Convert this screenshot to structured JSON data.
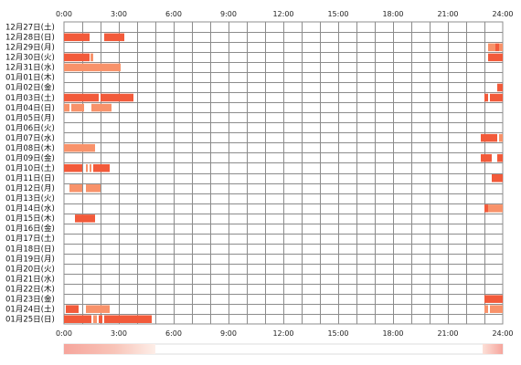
{
  "chart_data": {
    "type": "heatmap",
    "title": "",
    "xlabel": "",
    "ylabel": "",
    "x_ticks": [
      "0:00",
      "3:00",
      "6:00",
      "9:00",
      "12:00",
      "15:00",
      "18:00",
      "21:00",
      "24:00"
    ],
    "x_range_hours": [
      0,
      24
    ],
    "grid": true,
    "colors": {
      "strong": "#f25a3a",
      "light": "#f8926a",
      "grid": "#8c8c8c",
      "bar_strong": "#f58078",
      "bar_light": "#fde6dd"
    },
    "rows": [
      {
        "label": "12月27日(土)",
        "segments": []
      },
      {
        "label": "12月28日(日)",
        "segments": [
          [
            0.0,
            1.4,
            "strong"
          ],
          [
            2.2,
            3.3,
            "strong"
          ]
        ]
      },
      {
        "label": "12月29日(月)",
        "segments": [
          [
            23.2,
            23.6,
            "light"
          ],
          [
            23.6,
            23.8,
            "strong"
          ],
          [
            23.8,
            24.0,
            "light"
          ]
        ]
      },
      {
        "label": "12月30日(火)",
        "segments": [
          [
            0.0,
            1.4,
            "strong"
          ],
          [
            1.45,
            1.6,
            "light"
          ],
          [
            23.2,
            24.0,
            "strong"
          ]
        ]
      },
      {
        "label": "12月31日(水)",
        "segments": [
          [
            0.0,
            3.1,
            "light"
          ]
        ]
      },
      {
        "label": "01月01日(木)",
        "segments": []
      },
      {
        "label": "01月02日(金)",
        "segments": [
          [
            23.7,
            24.0,
            "strong"
          ]
        ]
      },
      {
        "label": "01月03日(土)",
        "segments": [
          [
            0.0,
            1.9,
            "strong"
          ],
          [
            2.0,
            3.8,
            "strong"
          ],
          [
            23.0,
            23.2,
            "strong"
          ],
          [
            23.3,
            24.0,
            "strong"
          ]
        ]
      },
      {
        "label": "01月04日(日)",
        "segments": [
          [
            0.0,
            0.3,
            "light"
          ],
          [
            0.4,
            1.1,
            "light"
          ],
          [
            1.5,
            2.6,
            "light"
          ]
        ]
      },
      {
        "label": "01月05日(月)",
        "segments": []
      },
      {
        "label": "01月06日(火)",
        "segments": []
      },
      {
        "label": "01月07日(水)",
        "segments": [
          [
            22.8,
            23.7,
            "strong"
          ],
          [
            23.8,
            24.0,
            "light"
          ]
        ]
      },
      {
        "label": "01月08日(木)",
        "segments": [
          [
            0.0,
            1.7,
            "light"
          ]
        ]
      },
      {
        "label": "01月09日(金)",
        "segments": [
          [
            22.8,
            23.4,
            "strong"
          ],
          [
            23.7,
            24.0,
            "strong"
          ]
        ]
      },
      {
        "label": "01月10日(土)",
        "segments": [
          [
            0.0,
            1.0,
            "strong"
          ],
          [
            1.2,
            1.3,
            "light"
          ],
          [
            1.4,
            1.5,
            "light"
          ],
          [
            1.6,
            2.5,
            "strong"
          ]
        ]
      },
      {
        "label": "01月11日(日)",
        "segments": [
          [
            23.4,
            24.0,
            "strong"
          ]
        ]
      },
      {
        "label": "01月12日(月)",
        "segments": [
          [
            0.3,
            1.0,
            "light"
          ],
          [
            1.2,
            2.0,
            "light"
          ]
        ]
      },
      {
        "label": "01月13日(火)",
        "segments": []
      },
      {
        "label": "01月14日(水)",
        "segments": [
          [
            23.0,
            23.2,
            "strong"
          ],
          [
            23.2,
            24.0,
            "light"
          ]
        ]
      },
      {
        "label": "01月15日(木)",
        "segments": [
          [
            0.6,
            1.7,
            "strong"
          ]
        ]
      },
      {
        "label": "01月16日(金)",
        "segments": []
      },
      {
        "label": "01月17日(土)",
        "segments": []
      },
      {
        "label": "01月18日(日)",
        "segments": []
      },
      {
        "label": "01月19日(月)",
        "segments": []
      },
      {
        "label": "01月20日(火)",
        "segments": []
      },
      {
        "label": "01月21日(水)",
        "segments": []
      },
      {
        "label": "01月22日(木)",
        "segments": []
      },
      {
        "label": "01月23日(金)",
        "segments": [
          [
            23.0,
            24.0,
            "strong"
          ]
        ]
      },
      {
        "label": "01月24日(土)",
        "segments": [
          [
            0.1,
            0.8,
            "strong"
          ],
          [
            1.2,
            2.5,
            "light"
          ],
          [
            23.0,
            23.2,
            "light"
          ],
          [
            23.3,
            24.0,
            "light"
          ]
        ]
      },
      {
        "label": "01月25日(日)",
        "segments": [
          [
            0.0,
            1.5,
            "strong"
          ],
          [
            1.6,
            1.8,
            "light"
          ],
          [
            1.9,
            2.1,
            "strong"
          ],
          [
            2.2,
            4.8,
            "strong"
          ]
        ]
      }
    ],
    "summary_bar_range_hours": [
      [
        0.0,
        5.0
      ],
      [
        22.9,
        24.0
      ]
    ]
  }
}
